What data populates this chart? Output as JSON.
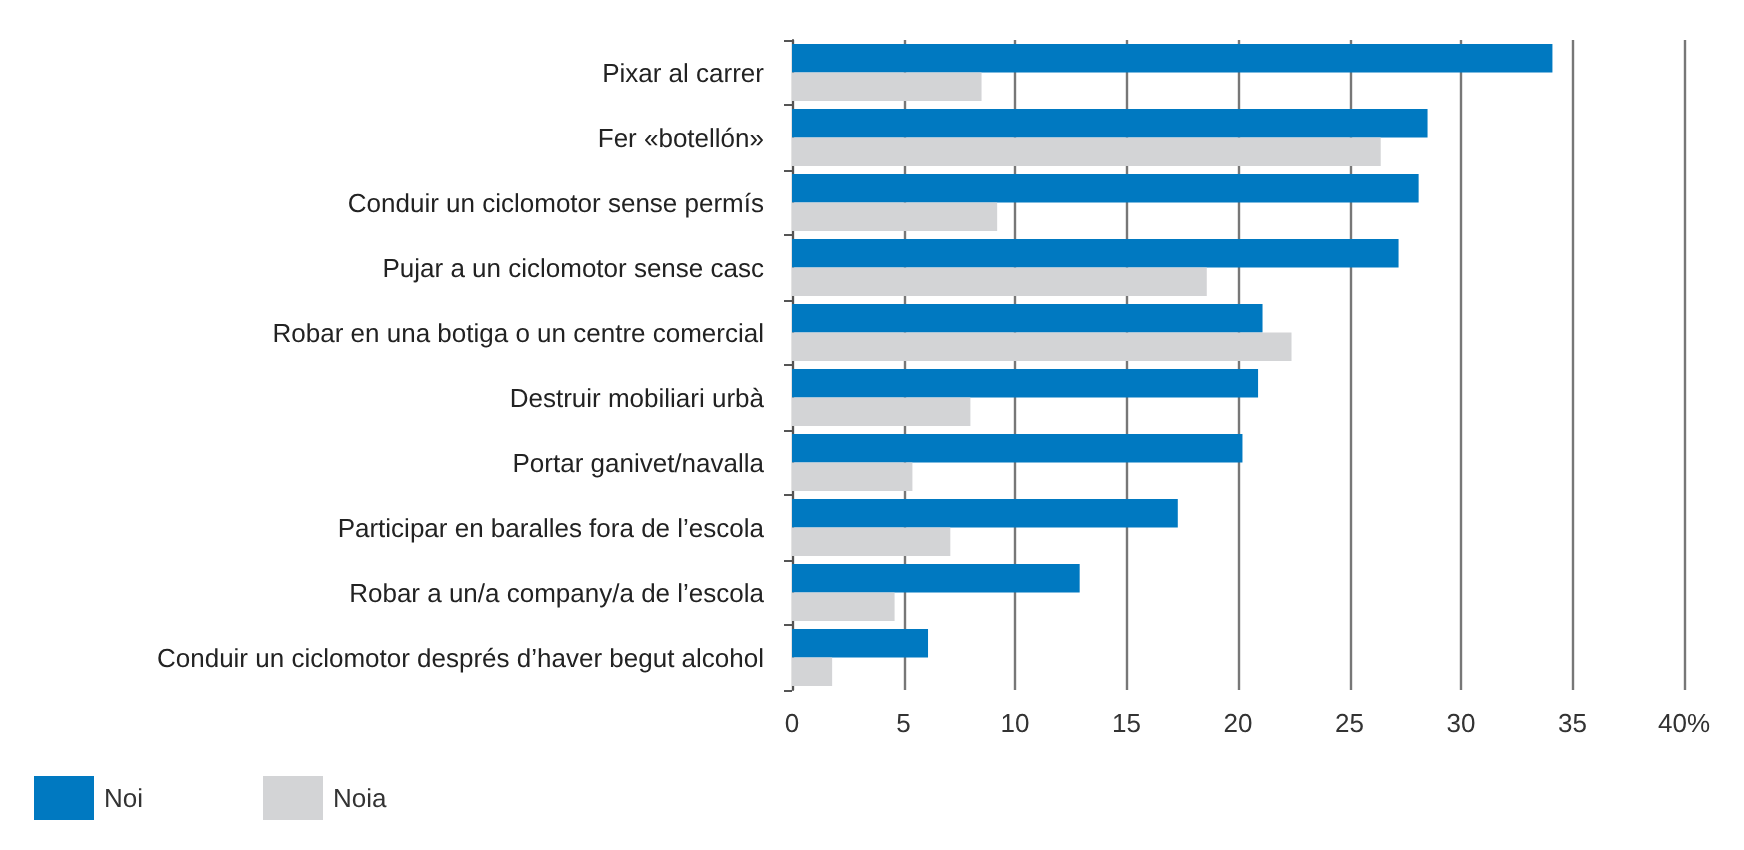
{
  "chart_data": {
    "type": "bar",
    "orientation": "horizontal",
    "categories": [
      "Pixar al carrer",
      "Fer «botellón»",
      "Conduir un ciclomotor sense permís",
      "Pujar a un ciclomotor sense casc",
      "Robar en una botiga o un centre comercial",
      "Destruir mobiliari urbà",
      "Portar ganivet/navalla",
      "Participar en baralles fora de l’escola",
      "Robar a un/a company/a de l’escola",
      "Conduir un ciclomotor després d’haver begut alcohol"
    ],
    "series": [
      {
        "name": "Noi",
        "color": "#0079c1",
        "values": [
          34.1,
          28.5,
          28.1,
          27.2,
          21.1,
          20.9,
          20.2,
          17.3,
          12.9,
          6.1
        ]
      },
      {
        "name": "Noia",
        "color": "#d3d4d6",
        "values": [
          8.5,
          26.4,
          9.2,
          18.6,
          22.4,
          8.0,
          5.4,
          7.1,
          4.6,
          1.8
        ]
      }
    ],
    "xlim": [
      0,
      40
    ],
    "xticks": [
      0,
      5,
      10,
      15,
      20,
      25,
      30,
      35,
      {
        "value": 40,
        "label": "40%"
      }
    ],
    "grid": "x",
    "legend": "bottom left"
  }
}
